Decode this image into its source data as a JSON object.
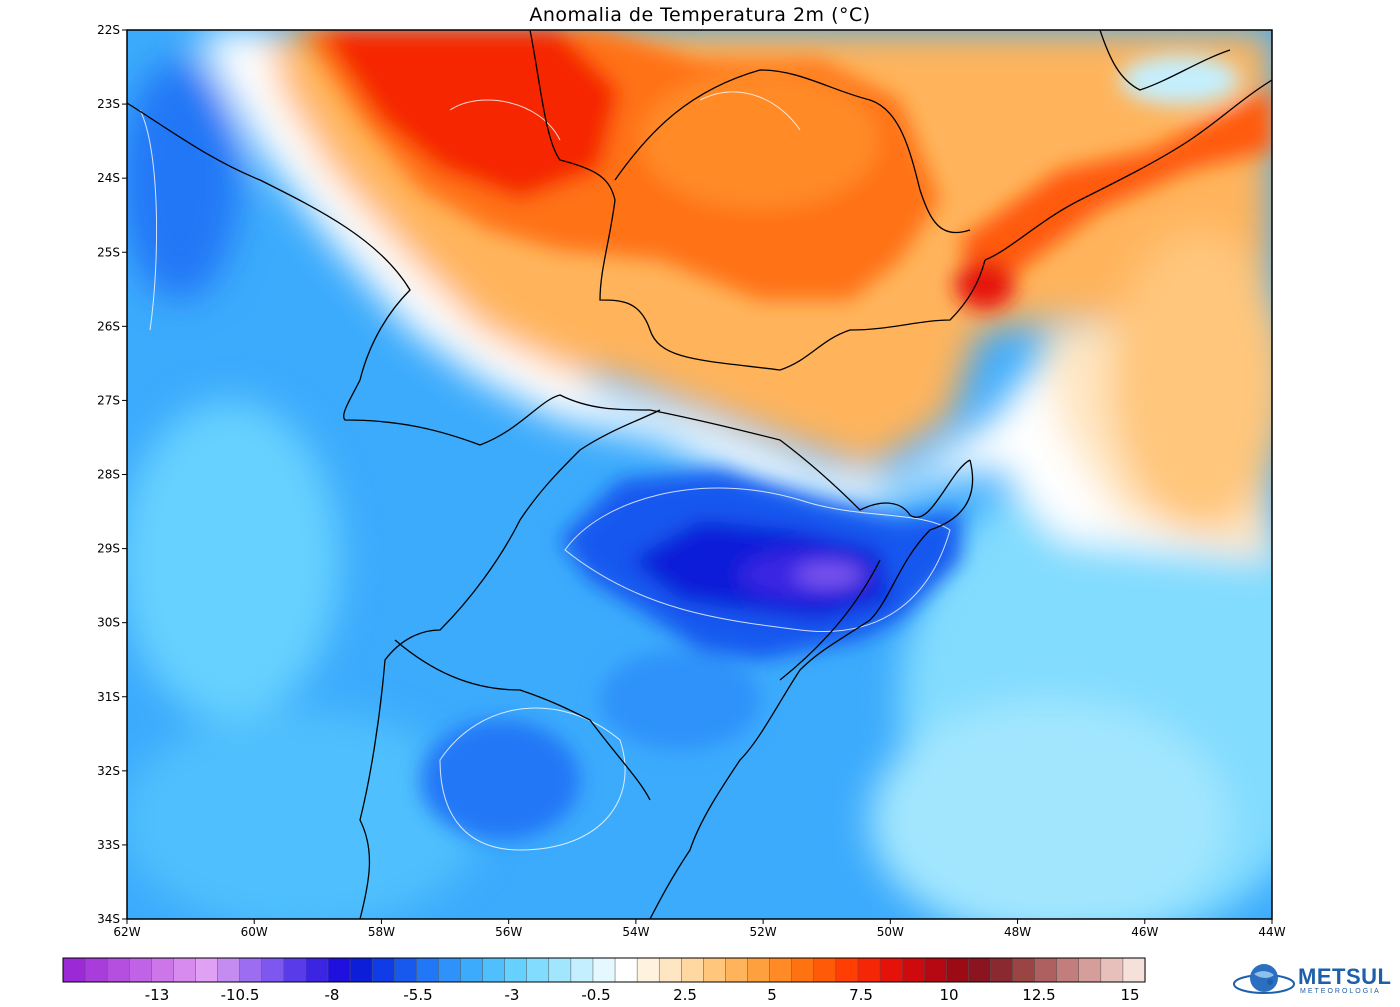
{
  "title": "Anomalia de Temperatura 2m (°C)",
  "axes": {
    "lat_labels": [
      "22S",
      "23S",
      "24S",
      "25S",
      "26S",
      "27S",
      "28S",
      "29S",
      "30S",
      "31S",
      "32S",
      "33S",
      "34S"
    ],
    "lon_labels": [
      "62W",
      "60W",
      "58W",
      "56W",
      "54W",
      "52W",
      "50W",
      "48W",
      "46W",
      "44W"
    ]
  },
  "colorbar": {
    "labels": [
      "-13",
      "-10.5",
      "-8",
      "-5.5",
      "-3",
      "-0.5",
      "2.5",
      "5",
      "7.5",
      "10",
      "12.5",
      "15"
    ],
    "colors": [
      "#9b2ad6",
      "#a83ddc",
      "#b54fe0",
      "#c163e6",
      "#cd76ea",
      "#d78bef",
      "#e0a0f3",
      "#c48bf0",
      "#9c6df0",
      "#7d57ee",
      "#5a3be9",
      "#3b25e3",
      "#2010df",
      "#0c1ed8",
      "#0f3ce6",
      "#1759ef",
      "#2277f6",
      "#2e92fa",
      "#3cabfc",
      "#4fc0fd",
      "#66d0fe",
      "#82dcfe",
      "#a2e6fe",
      "#c4effe",
      "#e6f8ff",
      "#ffffff",
      "#fff3e0",
      "#ffe6c2",
      "#ffd7a0",
      "#ffc67c",
      "#ffb45c",
      "#ffa03e",
      "#ff8a26",
      "#ff7212",
      "#ff5a08",
      "#ff3e04",
      "#f52606",
      "#e5120a",
      "#cf0a0e",
      "#b50812",
      "#9c0a16",
      "#8a1420",
      "#8a2a30",
      "#9a4444",
      "#ae5f60",
      "#c27e7c",
      "#d59e9a",
      "#e7c0bb",
      "#f6e0da"
    ]
  },
  "logo": {
    "name": "METSUL",
    "subtitle": "METEOROLOGIA"
  }
}
